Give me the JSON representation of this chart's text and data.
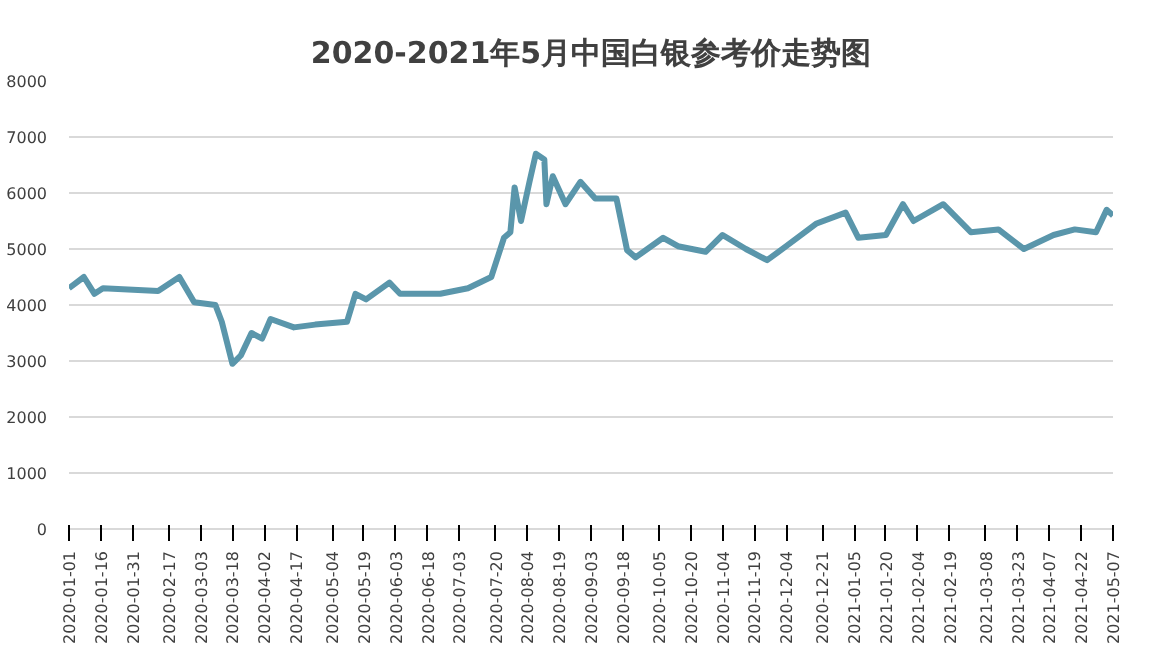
{
  "chart_data": {
    "type": "line",
    "title": "2020-2021年5月中国白银参考价走势图",
    "x": [
      "2020-01-01",
      "2020-01-08",
      "2020-01-13",
      "2020-01-17",
      "2020-02-12",
      "2020-02-22",
      "2020-02-29",
      "2020-03-10",
      "2020-03-13",
      "2020-03-18",
      "2020-03-22",
      "2020-03-27",
      "2020-04-01",
      "2020-04-05",
      "2020-04-16",
      "2020-04-26",
      "2020-05-11",
      "2020-05-15",
      "2020-05-20",
      "2020-05-31",
      "2020-06-05",
      "2020-06-24",
      "2020-07-07",
      "2020-07-18",
      "2020-07-24",
      "2020-07-27",
      "2020-07-29",
      "2020-08-01",
      "2020-08-05",
      "2020-08-08",
      "2020-08-12",
      "2020-08-13",
      "2020-08-16",
      "2020-08-22",
      "2020-08-29",
      "2020-09-05",
      "2020-09-15",
      "2020-09-20",
      "2020-09-24",
      "2020-10-07",
      "2020-10-14",
      "2020-10-27",
      "2020-11-04",
      "2020-11-15",
      "2020-11-25",
      "2020-12-04",
      "2020-12-18",
      "2021-01-01",
      "2021-01-07",
      "2021-01-20",
      "2021-01-28",
      "2021-02-02",
      "2021-02-16",
      "2021-03-01",
      "2021-03-14",
      "2021-03-26",
      "2021-04-09",
      "2021-04-19",
      "2021-04-29",
      "2021-05-04",
      "2021-05-07"
    ],
    "series": [
      {
        "color": "#5a96ab",
        "values": [
          4300,
          4500,
          4200,
          4300,
          4250,
          4500,
          4050,
          4000,
          3700,
          2950,
          3100,
          3500,
          3400,
          3750,
          3600,
          3650,
          3700,
          4200,
          4100,
          4400,
          4200,
          4200,
          4300,
          4500,
          5200,
          5300,
          6100,
          5500,
          6200,
          6700,
          6600,
          5800,
          6300,
          5800,
          6200,
          5900,
          5900,
          4980,
          4850,
          5200,
          5050,
          4950,
          5250,
          5000,
          4800,
          5050,
          5450,
          5650,
          5200,
          5250,
          5800,
          5500,
          5800,
          5300,
          5350,
          5000,
          5250,
          5350,
          5300,
          5700,
          5600
        ]
      }
    ],
    "xlim": [
      "2020-01-01",
      "2021-05-07"
    ],
    "xticks": [
      {
        "value": "2020-01-01",
        "label": "2020-01-01"
      },
      {
        "value": "2020-01-16",
        "label": "2020-01-16"
      },
      {
        "value": "2020-01-31",
        "label": "2020-01-31"
      },
      {
        "value": "2020-02-17",
        "label": "2020-02-17"
      },
      {
        "value": "2020-03-03",
        "label": "2020-03-03"
      },
      {
        "value": "2020-03-18",
        "label": "2020-03-18"
      },
      {
        "value": "2020-04-02",
        "label": "2020-04-02"
      },
      {
        "value": "2020-04-17",
        "label": "2020-04-17"
      },
      {
        "value": "2020-05-04",
        "label": "2020-05-04"
      },
      {
        "value": "2020-05-19",
        "label": "2020-05-19"
      },
      {
        "value": "2020-06-03",
        "label": "2020-06-03"
      },
      {
        "value": "2020-06-18",
        "label": "2020-06-18"
      },
      {
        "value": "2020-07-03",
        "label": "2020-07-03"
      },
      {
        "value": "2020-07-20",
        "label": "2020-07-20"
      },
      {
        "value": "2020-08-04",
        "label": "2020-08-04"
      },
      {
        "value": "2020-08-19",
        "label": "2020-08-19"
      },
      {
        "value": "2020-09-03",
        "label": "2020-09-03"
      },
      {
        "value": "2020-09-18",
        "label": "2020-09-18"
      },
      {
        "value": "2020-10-05",
        "label": "2020-10-05"
      },
      {
        "value": "2020-10-20",
        "label": "2020-10-20"
      },
      {
        "value": "2020-11-04",
        "label": "2020-11-04"
      },
      {
        "value": "2020-11-19",
        "label": "2020-11-19"
      },
      {
        "value": "2020-12-04",
        "label": "2020-12-04"
      },
      {
        "value": "2020-12-21",
        "label": "2020-12-21"
      },
      {
        "value": "2021-01-05",
        "label": "2021-01-05"
      },
      {
        "value": "2021-01-20",
        "label": "2021-01-20"
      },
      {
        "value": "2021-02-04",
        "label": "2021-02-04"
      },
      {
        "value": "2021-02-19",
        "label": "2021-02-19"
      },
      {
        "value": "2021-03-08",
        "label": "2021-03-08"
      },
      {
        "value": "2021-03-23",
        "label": "2021-03-23"
      },
      {
        "value": "2021-04-07",
        "label": "2021-04-07"
      },
      {
        "value": "2021-04-22",
        "label": "2021-04-22"
      },
      {
        "value": "2021-05-07",
        "label": "2021-05-07"
      }
    ],
    "ylim": [
      0,
      8000
    ],
    "yticks": [
      0,
      1000,
      2000,
      3000,
      4000,
      5000,
      6000,
      7000,
      8000
    ],
    "grid": "y",
    "marker": "none",
    "line_style": "solid"
  }
}
